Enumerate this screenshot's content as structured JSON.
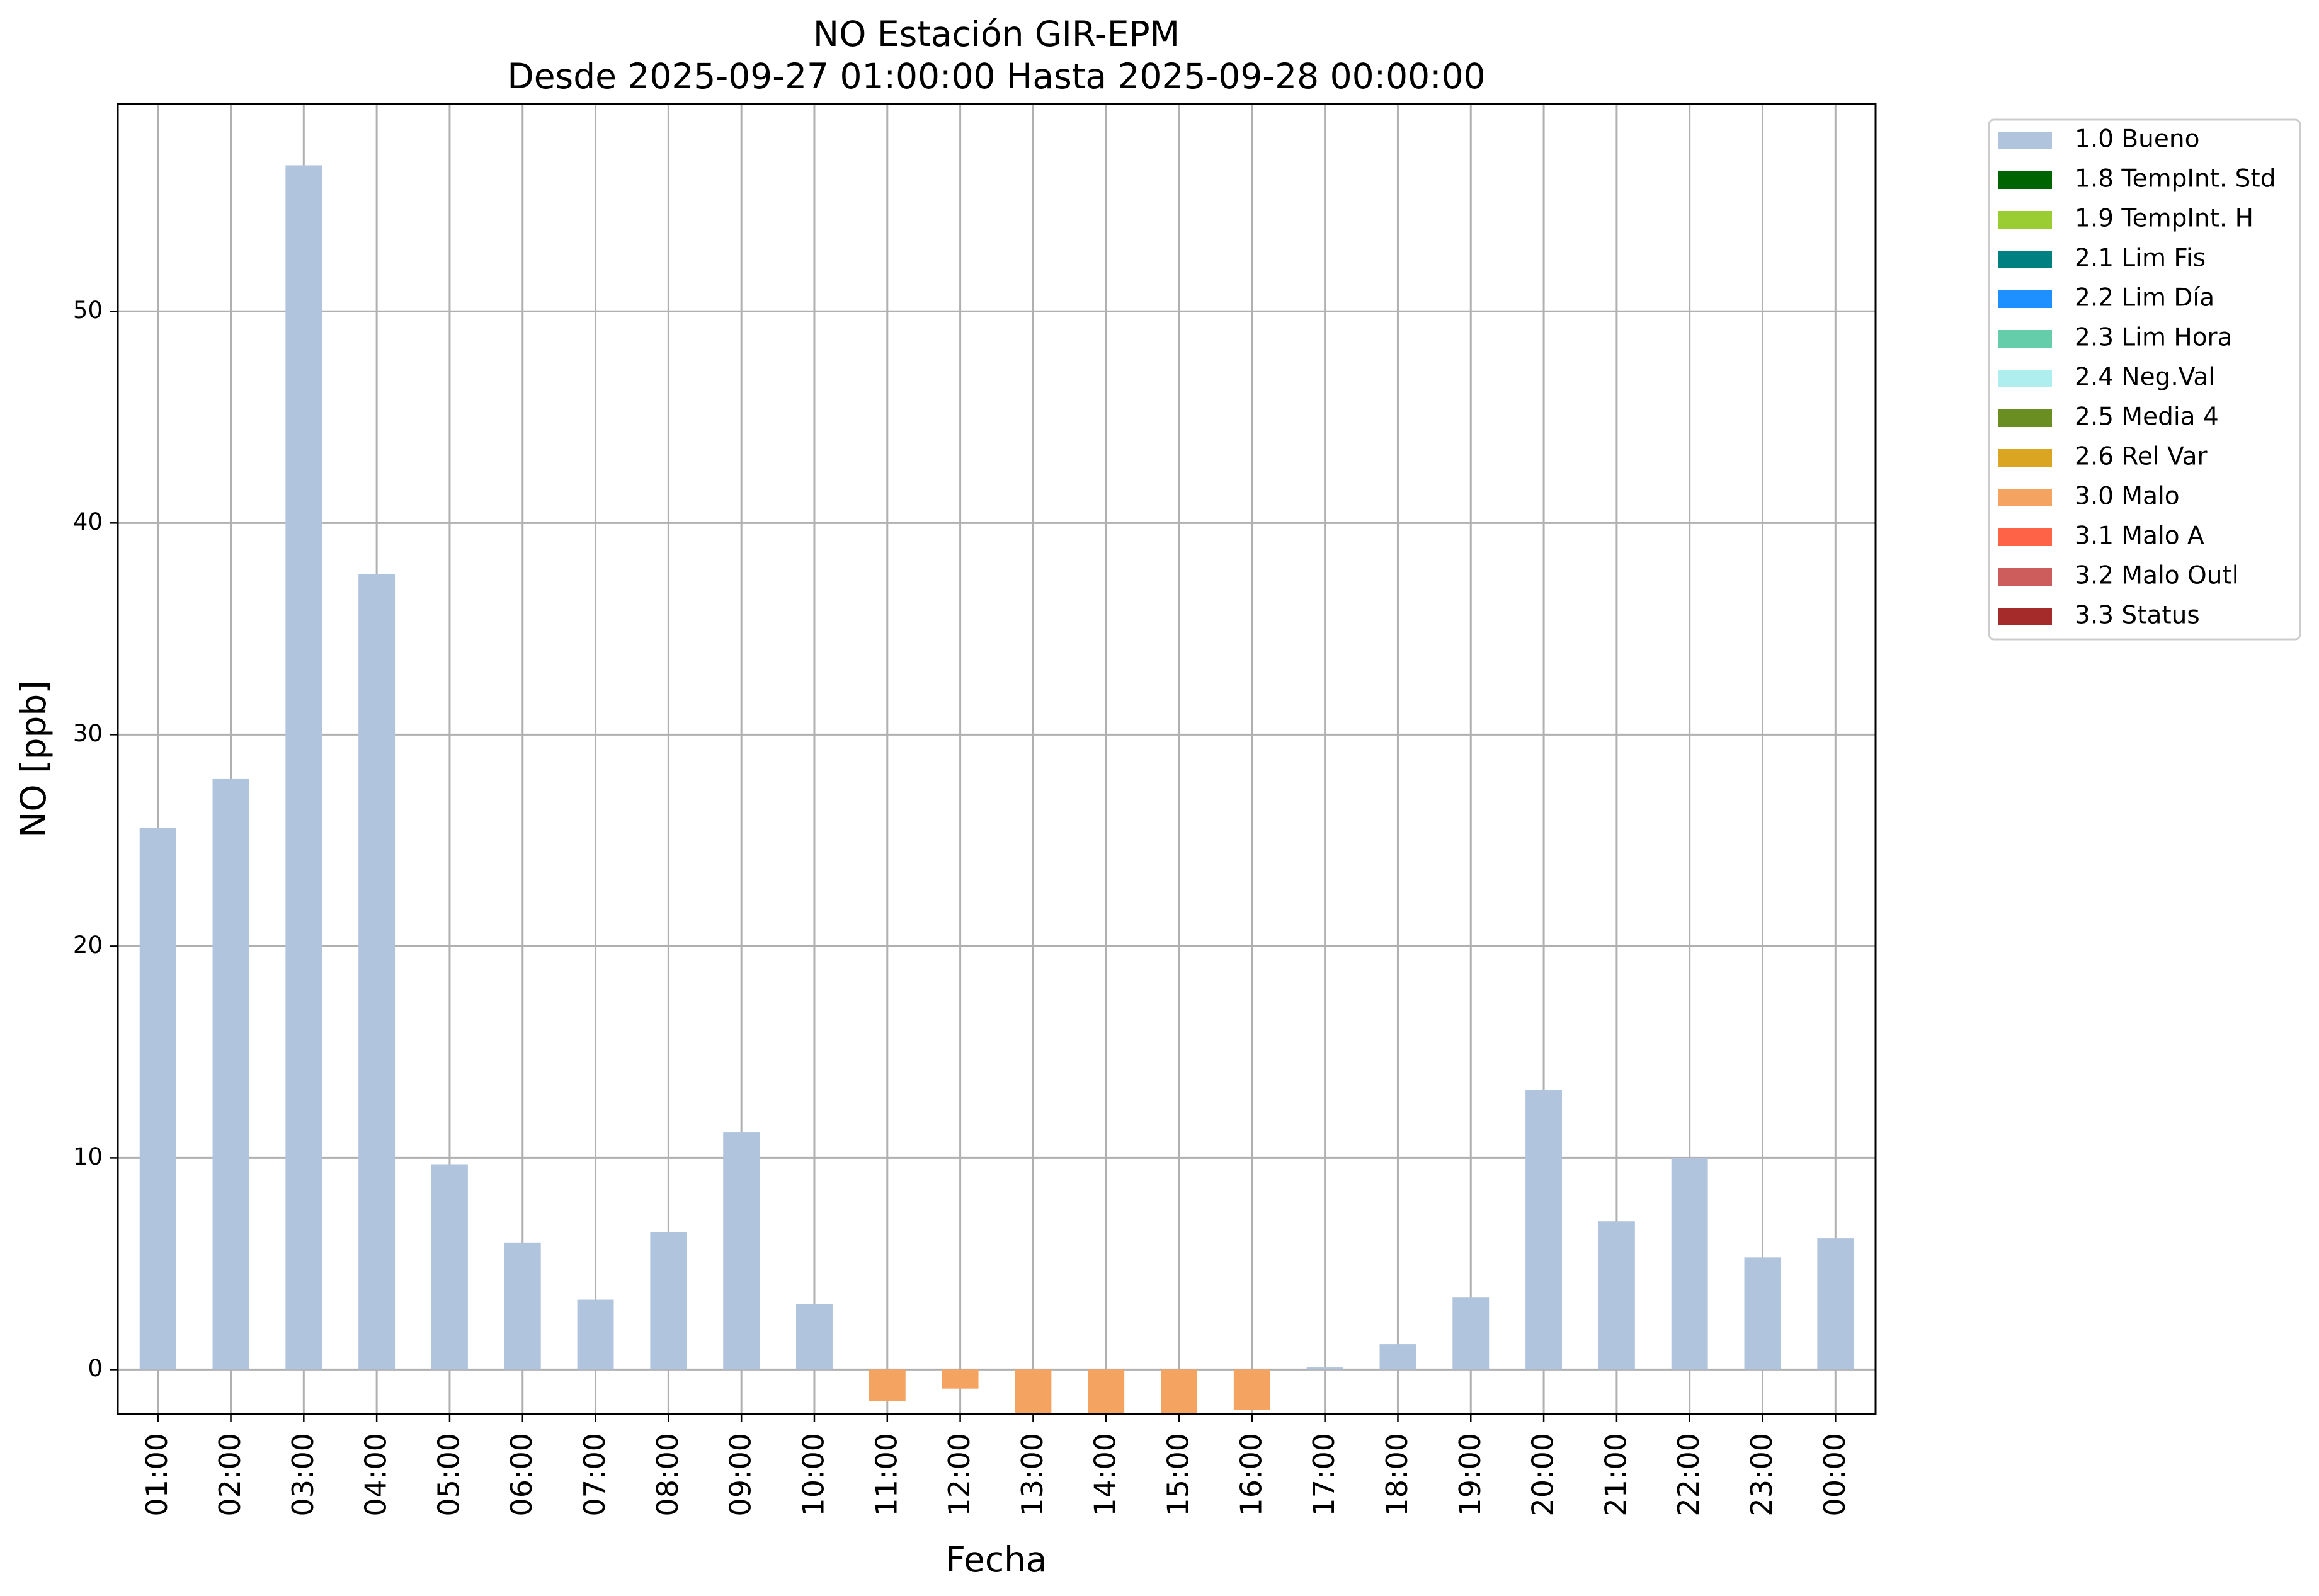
{
  "chart_data": {
    "type": "bar",
    "title": "NO Estación GIR-EPM",
    "subtitle": "Desde 2025-09-27 01:00:00 Hasta 2025-09-28 00:00:00",
    "xlabel": "Fecha",
    "ylabel": "NO [ppb]",
    "categories": [
      "01:00",
      "02:00",
      "03:00",
      "04:00",
      "05:00",
      "06:00",
      "07:00",
      "08:00",
      "09:00",
      "10:00",
      "11:00",
      "12:00",
      "13:00",
      "14:00",
      "15:00",
      "16:00",
      "17:00",
      "18:00",
      "19:00",
      "20:00",
      "21:00",
      "22:00",
      "23:00",
      "00:00"
    ],
    "values": [
      25.6,
      27.9,
      56.9,
      37.6,
      9.7,
      6.0,
      3.3,
      6.5,
      11.2,
      3.1,
      -1.5,
      -0.9,
      -2.1,
      -2.1,
      -2.1,
      -1.9,
      0.1,
      1.2,
      3.4,
      13.2,
      7.0,
      10.0,
      5.3,
      6.2
    ],
    "flags": [
      "1.0 Bueno",
      "1.0 Bueno",
      "1.0 Bueno",
      "1.0 Bueno",
      "1.0 Bueno",
      "1.0 Bueno",
      "1.0 Bueno",
      "1.0 Bueno",
      "1.0 Bueno",
      "1.0 Bueno",
      "3.0 Malo",
      "3.0 Malo",
      "3.0 Malo",
      "3.0 Malo",
      "3.0 Malo",
      "3.0 Malo",
      "1.0 Bueno",
      "1.0 Bueno",
      "1.0 Bueno",
      "1.0 Bueno",
      "1.0 Bueno",
      "1.0 Bueno",
      "1.0 Bueno",
      "1.0 Bueno"
    ],
    "ylim": [
      -2.1,
      59.8
    ],
    "yticks": [
      0,
      10,
      20,
      30,
      40,
      50
    ],
    "grid": true,
    "legend_position": "outside-upper-right",
    "legend": [
      {
        "label": "1.0 Bueno",
        "color": "#b0c4de"
      },
      {
        "label": "1.8 TempInt. Std",
        "color": "#006400"
      },
      {
        "label": "1.9 TempInt. H",
        "color": "#9acd32"
      },
      {
        "label": "2.1 Lim Fis",
        "color": "#008080"
      },
      {
        "label": "2.2 Lim Día",
        "color": "#1e90ff"
      },
      {
        "label": "2.3 Lim Hora",
        "color": "#66cdaa"
      },
      {
        "label": "2.4 Neg.Val",
        "color": "#afeeee"
      },
      {
        "label": "2.5 Media 4",
        "color": "#6b8e23"
      },
      {
        "label": "2.6 Rel Var",
        "color": "#daa520"
      },
      {
        "label": "3.0 Malo",
        "color": "#f4a460"
      },
      {
        "label": "3.1 Malo A",
        "color": "#ff6347"
      },
      {
        "label": "3.2 Malo Outl",
        "color": "#cd5c5c"
      },
      {
        "label": "3.3 Status",
        "color": "#a52a2a"
      }
    ]
  }
}
